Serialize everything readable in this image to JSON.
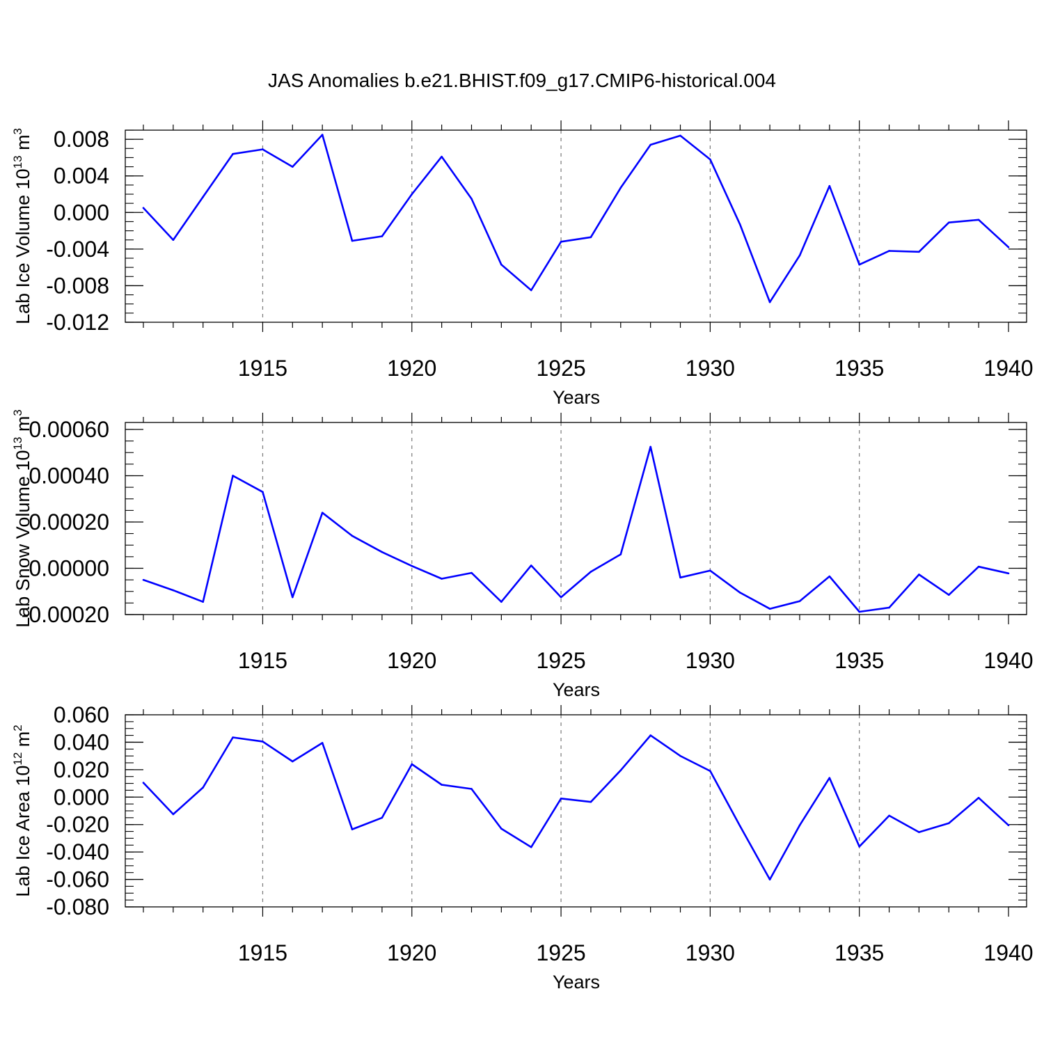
{
  "title": "JAS Anomalies b.e21.BHIST.f09_g17.CMIP6-historical.004",
  "colors": {
    "series": "#0000ff",
    "axis": "#000000",
    "grid": "#777777"
  },
  "chart_data": [
    {
      "type": "line",
      "name": "ice-volume",
      "ylabel": {
        "text": "Lab Ice Volume 10",
        "exponent": "13",
        "unit": "m",
        "unit_exponent": "3"
      },
      "xlabel": "Years",
      "xlim": [
        1911,
        1940
      ],
      "ylim": [
        -0.012,
        0.009
      ],
      "yticks": [
        -0.012,
        -0.008,
        -0.004,
        0.0,
        0.004,
        0.008
      ],
      "ytick_labels": [
        "-0.012",
        "-0.008",
        "-0.004",
        "0.000",
        "0.004",
        "0.008"
      ],
      "yminor_step": 0.001,
      "xticks": [
        1915,
        1920,
        1925,
        1930,
        1935,
        1940
      ],
      "xtick_labels": [
        "1915",
        "1920",
        "1925",
        "1930",
        "1935",
        "1940"
      ],
      "x": [
        1911,
        1912,
        1913,
        1914,
        1915,
        1916,
        1917,
        1918,
        1919,
        1920,
        1921,
        1922,
        1923,
        1924,
        1925,
        1926,
        1927,
        1928,
        1929,
        1930,
        1931,
        1932,
        1933,
        1934,
        1935,
        1936,
        1937,
        1938,
        1939,
        1940
      ],
      "values": [
        0.0005,
        -0.003,
        0.0017,
        0.0064,
        0.0069,
        0.005,
        0.0085,
        -0.0031,
        -0.0026,
        0.002,
        0.0061,
        0.0015,
        -0.0057,
        -0.0085,
        -0.0032,
        -0.0027,
        0.0027,
        0.0074,
        0.0084,
        0.0058,
        -0.0013,
        -0.0098,
        -0.0047,
        0.0029,
        -0.0057,
        -0.0042,
        -0.0043,
        -0.0011,
        -0.0008,
        -0.0038
      ]
    },
    {
      "type": "line",
      "name": "snow-volume",
      "ylabel": {
        "text": "Lab Snow Volume 10",
        "exponent": "13",
        "unit": "m",
        "unit_exponent": "3"
      },
      "xlabel": "Years",
      "xlim": [
        1911,
        1940
      ],
      "ylim": [
        -0.0002,
        0.00063
      ],
      "yticks": [
        -0.0002,
        0.0,
        0.0002,
        0.0004,
        0.0006
      ],
      "ytick_labels": [
        "-0.00020",
        "0.00000",
        "0.00020",
        "0.00040",
        "0.00060"
      ],
      "yminor_step": 5e-05,
      "xticks": [
        1915,
        1920,
        1925,
        1930,
        1935,
        1940
      ],
      "xtick_labels": [
        "1915",
        "1920",
        "1925",
        "1930",
        "1935",
        "1940"
      ],
      "x": [
        1911,
        1912,
        1913,
        1914,
        1915,
        1916,
        1917,
        1918,
        1919,
        1920,
        1921,
        1922,
        1923,
        1924,
        1925,
        1926,
        1927,
        1928,
        1929,
        1930,
        1931,
        1932,
        1933,
        1934,
        1935,
        1936,
        1937,
        1938,
        1939,
        1940
      ],
      "values": [
        -5e-05,
        -9.5e-05,
        -0.000145,
        0.0004,
        0.00033,
        -0.000125,
        0.00024,
        0.00014,
        7e-05,
        1e-05,
        -4.5e-05,
        -2e-05,
        -0.000145,
        1.2e-05,
        -0.000125,
        -1.5e-05,
        6e-05,
        0.000525,
        -4e-05,
        -1e-05,
        -0.000105,
        -0.000175,
        -0.000142,
        -3.5e-05,
        -0.000188,
        -0.00017,
        -2.7e-05,
        -0.000115,
        7e-06,
        -2.2e-05
      ]
    },
    {
      "type": "line",
      "name": "ice-area",
      "ylabel": {
        "text": "Lab Ice Area 10",
        "exponent": "12",
        "unit": "m",
        "unit_exponent": "2"
      },
      "xlabel": "Years",
      "xlim": [
        1911,
        1940
      ],
      "ylim": [
        -0.08,
        0.06
      ],
      "yticks": [
        -0.08,
        -0.06,
        -0.04,
        -0.02,
        0.0,
        0.02,
        0.04,
        0.06
      ],
      "ytick_labels": [
        "-0.080",
        "-0.060",
        "-0.040",
        "-0.020",
        "0.000",
        "0.020",
        "0.040",
        "0.060"
      ],
      "yminor_step": 0.005,
      "xticks": [
        1915,
        1920,
        1925,
        1930,
        1935,
        1940
      ],
      "xtick_labels": [
        "1915",
        "1920",
        "1925",
        "1930",
        "1935",
        "1940"
      ],
      "x": [
        1911,
        1912,
        1913,
        1914,
        1915,
        1916,
        1917,
        1918,
        1919,
        1920,
        1921,
        1922,
        1923,
        1924,
        1925,
        1926,
        1927,
        1928,
        1929,
        1930,
        1931,
        1932,
        1933,
        1934,
        1935,
        1936,
        1937,
        1938,
        1939,
        1940
      ],
      "values": [
        0.0105,
        -0.0125,
        0.007,
        0.0435,
        0.0405,
        0.026,
        0.0395,
        -0.0235,
        -0.015,
        0.024,
        0.009,
        0.006,
        -0.023,
        -0.0365,
        -0.001,
        -0.0035,
        0.0195,
        0.045,
        0.03,
        0.019,
        -0.021,
        -0.06,
        -0.0205,
        0.014,
        -0.036,
        -0.0135,
        -0.0255,
        -0.019,
        -0.0005,
        -0.0205
      ]
    }
  ]
}
